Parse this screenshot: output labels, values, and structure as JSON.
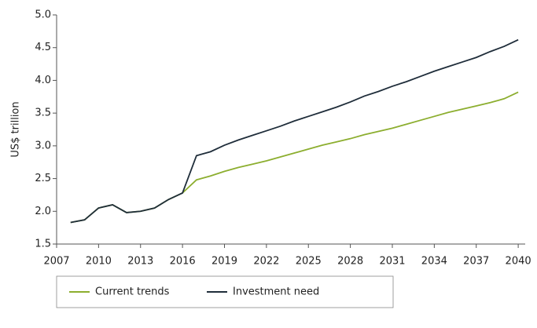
{
  "chart_data": {
    "type": "line",
    "y_label": "US$ trillion",
    "x": [
      2008,
      2009,
      2010,
      2011,
      2012,
      2013,
      2014,
      2015,
      2016,
      2017,
      2018,
      2019,
      2020,
      2021,
      2022,
      2023,
      2024,
      2025,
      2026,
      2027,
      2028,
      2029,
      2030,
      2031,
      2032,
      2033,
      2034,
      2035,
      2036,
      2037,
      2038,
      2039,
      2040
    ],
    "series": [
      {
        "name": "Current trends",
        "color": "#8cae2f",
        "values": [
          1.83,
          1.87,
          2.05,
          2.1,
          1.98,
          2.0,
          2.05,
          2.18,
          2.28,
          2.48,
          2.54,
          2.61,
          2.67,
          2.72,
          2.77,
          2.83,
          2.89,
          2.95,
          3.01,
          3.06,
          3.11,
          3.17,
          3.22,
          3.27,
          3.33,
          3.39,
          3.45,
          3.51,
          3.56,
          3.61,
          3.66,
          3.72,
          3.82
        ]
      },
      {
        "name": "Investment need",
        "color": "#1f2d3a",
        "values": [
          1.83,
          1.87,
          2.05,
          2.1,
          1.98,
          2.0,
          2.05,
          2.18,
          2.28,
          2.85,
          2.91,
          3.01,
          3.09,
          3.16,
          3.23,
          3.3,
          3.38,
          3.45,
          3.52,
          3.59,
          3.67,
          3.76,
          3.83,
          3.91,
          3.98,
          4.06,
          4.14,
          4.21,
          4.28,
          4.35,
          4.44,
          4.52,
          4.62
        ]
      }
    ],
    "xlim": [
      2007,
      2040.5
    ],
    "xticks": [
      2007,
      2010,
      2013,
      2016,
      2019,
      2022,
      2025,
      2028,
      2031,
      2034,
      2037,
      2040
    ],
    "ylim": [
      1.5,
      5.0
    ],
    "yticks": [
      {
        "value": 1.5,
        "label": "1.5"
      },
      {
        "value": 2,
        "label": "2.0"
      },
      2.5,
      {
        "value": 3,
        "label": "3.0"
      },
      3.5,
      {
        "value": 4,
        "label": "4.0"
      },
      4.5,
      {
        "value": 5,
        "label": "5.0"
      }
    ],
    "legend": "bottom"
  }
}
